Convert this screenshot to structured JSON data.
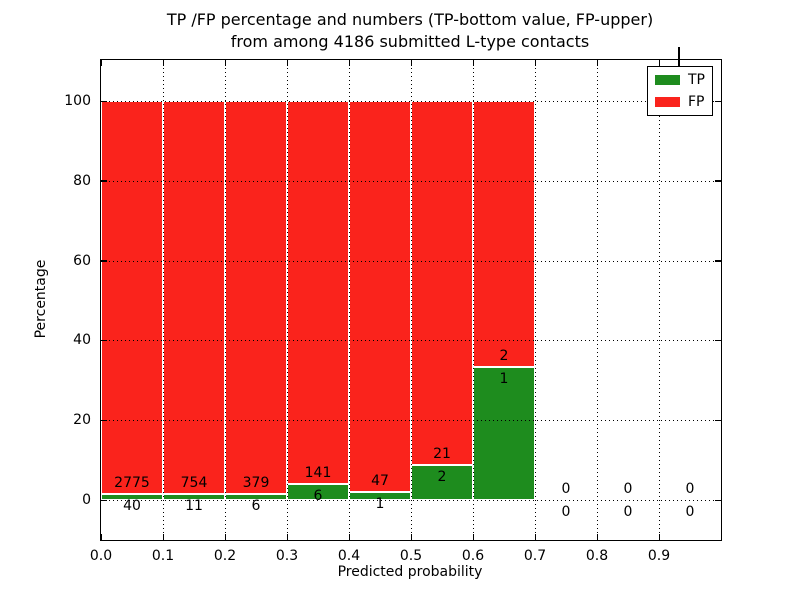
{
  "chart_data": {
    "type": "bar",
    "stacked": true,
    "title_line1": "TP /FP percentage and numbers (TP-bottom value, FP-upper)",
    "title_line2": "from among 4186 submitted L-type contacts",
    "xlabel": "Predicted probability",
    "ylabel": "Percentage",
    "x_ticks": [
      "0.0",
      "0.1",
      "0.2",
      "0.3",
      "0.4",
      "0.5",
      "0.6",
      "0.7",
      "0.8",
      "0.9"
    ],
    "y_ticks": [
      0,
      20,
      40,
      60,
      80,
      100
    ],
    "xlim": [
      0.0,
      1.0
    ],
    "ylim": [
      -10.5,
      110.5
    ],
    "grid": "dotted black, drawn over bars",
    "bar_edge_color": "#ffffff",
    "legend": {
      "position": "upper right",
      "items": [
        {
          "label": "TP",
          "color": "#1e8c1e"
        },
        {
          "label": "FP",
          "color": "#fa231c"
        }
      ]
    },
    "bins": [
      {
        "x0": 0.0,
        "x1": 0.1,
        "tp": 40,
        "fp": 2775,
        "tp_pct": 1.42
      },
      {
        "x0": 0.1,
        "x1": 0.2,
        "tp": 11,
        "fp": 754,
        "tp_pct": 1.44
      },
      {
        "x0": 0.2,
        "x1": 0.3,
        "tp": 6,
        "fp": 379,
        "tp_pct": 1.56
      },
      {
        "x0": 0.3,
        "x1": 0.4,
        "tp": 6,
        "fp": 141,
        "tp_pct": 4.08
      },
      {
        "x0": 0.4,
        "x1": 0.5,
        "tp": 1,
        "fp": 47,
        "tp_pct": 2.08
      },
      {
        "x0": 0.5,
        "x1": 0.6,
        "tp": 2,
        "fp": 21,
        "tp_pct": 8.7
      },
      {
        "x0": 0.6,
        "x1": 0.7,
        "tp": 1,
        "fp": 2,
        "tp_pct": 33.33
      },
      {
        "x0": 0.7,
        "x1": 0.8,
        "tp": 0,
        "fp": 0,
        "tp_pct": 0
      },
      {
        "x0": 0.8,
        "x1": 0.9,
        "tp": 0,
        "fp": 0,
        "tp_pct": 0
      },
      {
        "x0": 0.9,
        "x1": 1.0,
        "tp": 0,
        "fp": 0,
        "tp_pct": 0
      }
    ]
  }
}
